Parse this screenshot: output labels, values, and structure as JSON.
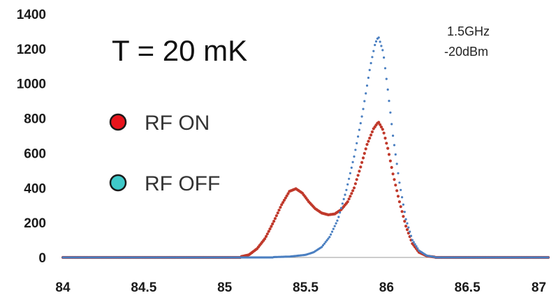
{
  "chart_data": {
    "type": "scatter",
    "title": "",
    "xlabel": "",
    "ylabel": "",
    "xlim": [
      84,
      87
    ],
    "ylim": [
      0,
      1400
    ],
    "x_ticks": [
      "84",
      "84.5",
      "85",
      "85.5",
      "86",
      "86.5",
      "87"
    ],
    "y_ticks": [
      "0",
      "200",
      "400",
      "600",
      "800",
      "1000",
      "1200",
      "1400"
    ],
    "legend_placement": "left",
    "annotations": {
      "temperature": "T = 20 mK",
      "frequency": "1.5GHz",
      "power": "-20dBm"
    },
    "series": [
      {
        "name": "RF ON",
        "color": "#c0392b",
        "marker_color": "#e8141c",
        "points": [
          [
            85.1,
            5
          ],
          [
            85.15,
            15
          ],
          [
            85.2,
            50
          ],
          [
            85.25,
            110
          ],
          [
            85.3,
            200
          ],
          [
            85.35,
            300
          ],
          [
            85.4,
            380
          ],
          [
            85.44,
            395
          ],
          [
            85.48,
            370
          ],
          [
            85.52,
            320
          ],
          [
            85.56,
            280
          ],
          [
            85.6,
            255
          ],
          [
            85.64,
            245
          ],
          [
            85.68,
            250
          ],
          [
            85.72,
            275
          ],
          [
            85.76,
            320
          ],
          [
            85.8,
            400
          ],
          [
            85.84,
            520
          ],
          [
            85.88,
            650
          ],
          [
            85.92,
            740
          ],
          [
            85.95,
            780
          ],
          [
            85.98,
            730
          ],
          [
            86.01,
            620
          ],
          [
            86.04,
            480
          ],
          [
            86.08,
            320
          ],
          [
            86.12,
            180
          ],
          [
            86.16,
            80
          ],
          [
            86.2,
            30
          ],
          [
            86.25,
            8
          ],
          [
            86.3,
            2
          ]
        ]
      },
      {
        "name": "RF OFF",
        "color": "#4a7fc1",
        "marker_color": "#3fc9c9",
        "points": [
          [
            85.3,
            2
          ],
          [
            85.4,
            5
          ],
          [
            85.5,
            15
          ],
          [
            85.55,
            30
          ],
          [
            85.6,
            60
          ],
          [
            85.65,
            120
          ],
          [
            85.7,
            220
          ],
          [
            85.75,
            380
          ],
          [
            85.8,
            580
          ],
          [
            85.85,
            820
          ],
          [
            85.9,
            1100
          ],
          [
            85.93,
            1230
          ],
          [
            85.95,
            1270
          ],
          [
            85.98,
            1180
          ],
          [
            86.01,
            950
          ],
          [
            86.04,
            700
          ],
          [
            86.08,
            430
          ],
          [
            86.12,
            220
          ],
          [
            86.16,
            100
          ],
          [
            86.2,
            40
          ],
          [
            86.25,
            10
          ],
          [
            86.3,
            2
          ]
        ]
      }
    ]
  }
}
